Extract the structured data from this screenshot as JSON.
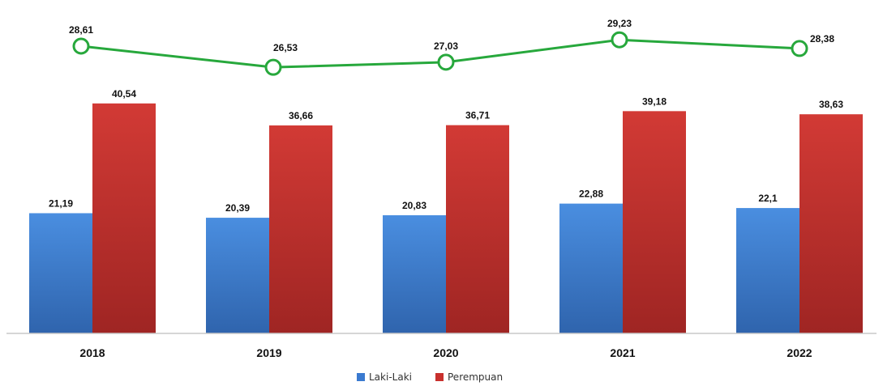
{
  "chart_data": {
    "type": "bar",
    "categories": [
      "2018",
      "2019",
      "2020",
      "2021",
      "2022"
    ],
    "series": [
      {
        "name": "Laki-Laki",
        "color": "#3a7ad0",
        "values": [
          21.19,
          20.39,
          20.83,
          22.88,
          22.1
        ],
        "labels": [
          "21,19",
          "20,39",
          "20,83",
          "22,88",
          "22,1"
        ]
      },
      {
        "name": "Perempuan",
        "color": "#c8302d",
        "values": [
          40.54,
          36.66,
          36.71,
          39.18,
          38.63
        ],
        "labels": [
          "40,54",
          "36,66",
          "36,71",
          "39,18",
          "38,63"
        ]
      }
    ],
    "line": {
      "color": "#27a83c",
      "values": [
        28.61,
        26.53,
        27.03,
        29.23,
        28.38
      ],
      "labels": [
        "28,61",
        "26,53",
        "27,03",
        "29,23",
        "28,38"
      ]
    },
    "ylim": [
      0,
      42
    ],
    "grid": false,
    "legend": "bottom-center"
  }
}
